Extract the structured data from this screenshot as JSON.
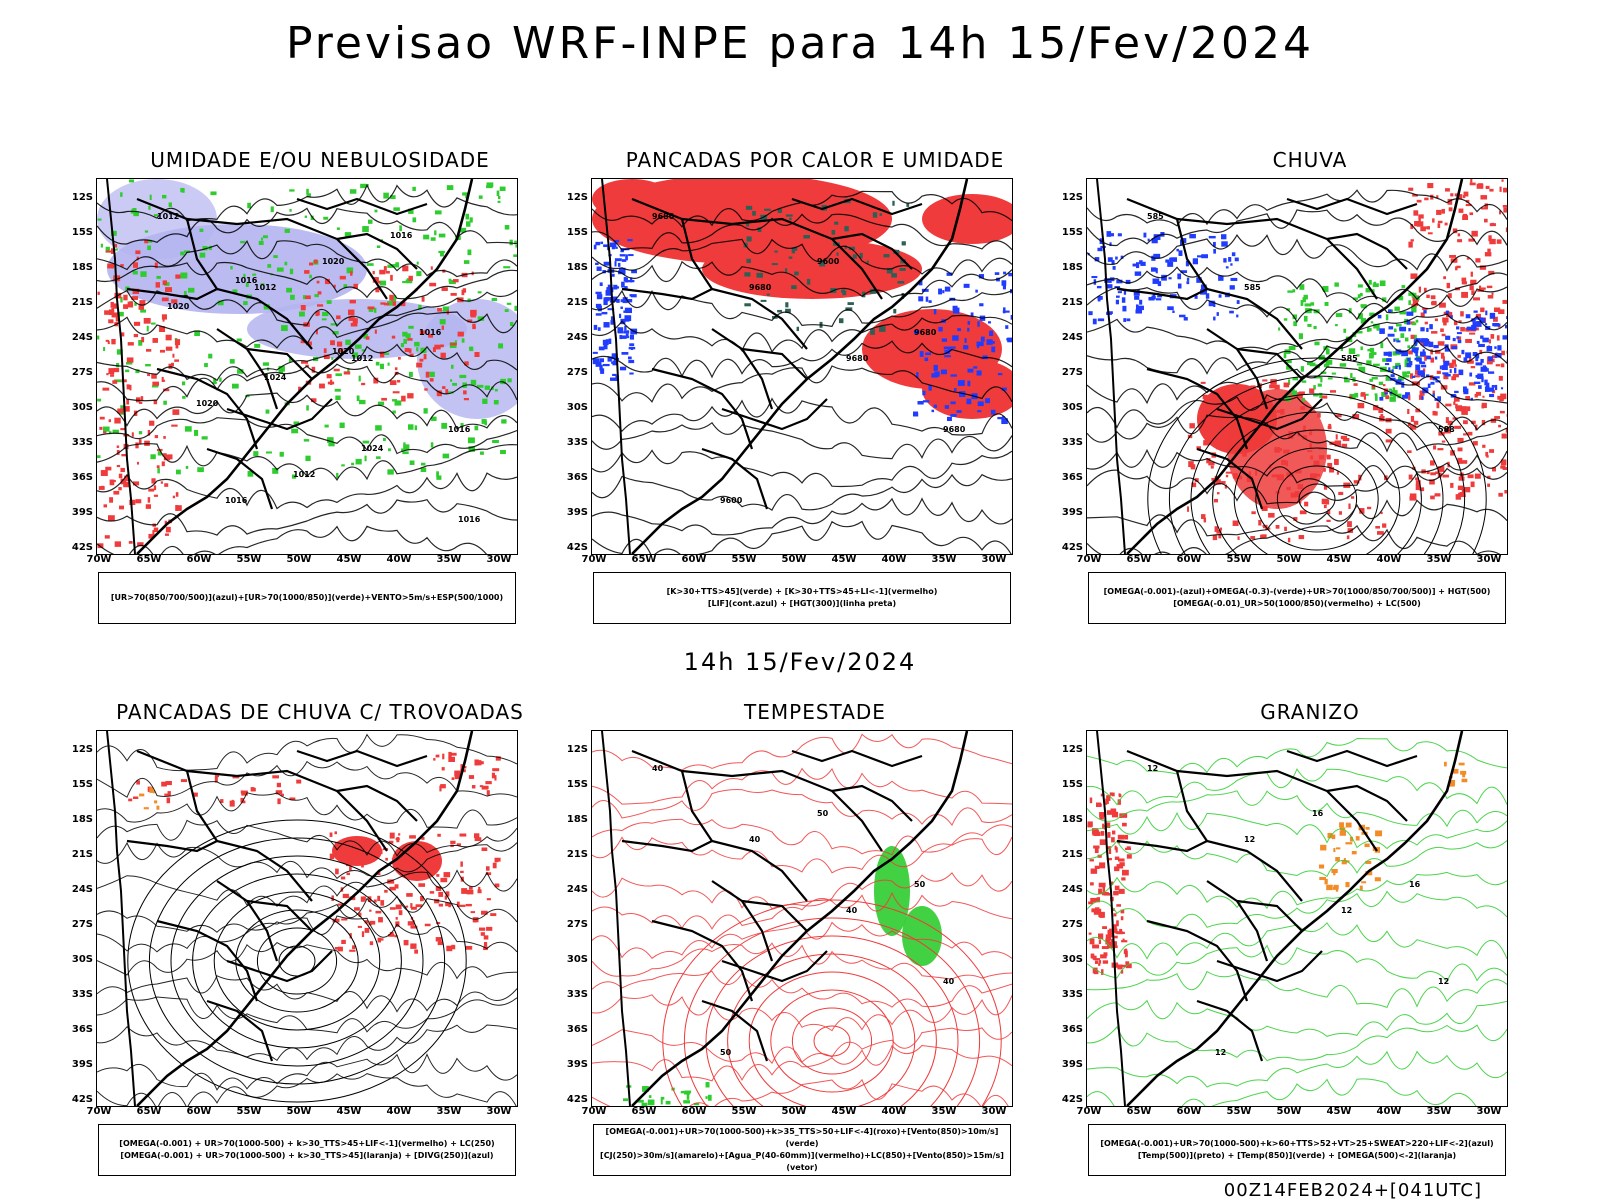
{
  "title": "Previsao WRF-INPE  para 14h 15/Fev/2024",
  "subtitle": "14h 15/Fev/2024",
  "footer": "00Z14FEB2024+[041UTC]",
  "lat_labels": [
    "12S",
    "15S",
    "18S",
    "21S",
    "24S",
    "27S",
    "30S",
    "33S",
    "36S",
    "39S",
    "42S"
  ],
  "lon_labels": [
    "70W",
    "65W",
    "60W",
    "55W",
    "50W",
    "45W",
    "40W",
    "35W",
    "30W"
  ],
  "colors": {
    "red": "#ef3b3b",
    "green": "#2ecc2e",
    "blue": "#1f3cff",
    "lavender": "#b4b4f0",
    "orange": "#f28c28",
    "dark": "#2d5f55"
  },
  "panels": [
    {
      "title": "UMIDADE E/OU NEBULOSIDADE",
      "legend": [
        "[UR>70(850/700/500)](azul)+[UR>70(1000/850)](verde)+VENTO>5m/s+ESP(500/1000)"
      ],
      "isobars": [
        "1012",
        "1012",
        "1012",
        "1016",
        "1016",
        "1020",
        "1016",
        "1020",
        "1012",
        "1016",
        "1020",
        "1024",
        "1024",
        "1016",
        "1016",
        "1020"
      ]
    },
    {
      "title": "PANCADAS POR CALOR E UMIDADE",
      "legend": [
        "[K>30+TTS>45](verde) + [K>30+TTS>45+LI<-1](vermelho)",
        "[LIF](cont.azul) + [HGT(300)](linha preta)"
      ],
      "isobars": [
        "9680",
        "9680",
        "9680",
        "9680",
        "9600",
        "9600",
        "9680"
      ]
    },
    {
      "title": "CHUVA",
      "legend": [
        "[OMEGA(-0.001)-(azul)+OMEGA(-0.3)-(verde)+UR>70(1000/850/700/500)] + HGT(500)",
        "[OMEGA(-0.01)_UR>50(1000/850)(vermelho) + LC(500)"
      ],
      "isobars": [
        "585",
        "585",
        "585",
        "588"
      ]
    },
    {
      "title": "PANCADAS DE CHUVA C/ TROVOADAS",
      "legend": [
        "[OMEGA(-0.001) + UR>70(1000-500) + k>30_TTS>45+LIF<-1](vermelho) + LC(250)",
        "[OMEGA(-0.001) + UR>70(1000-500) + k>30_TTS>45](laranja) + [DIVG(250)](azul)"
      ],
      "isobars": []
    },
    {
      "title": "TEMPESTADE",
      "legend": [
        "[OMEGA(-0.001)+UR>70(1000-500)+k>35_TTS>50+LIF<-4](roxo)+[Vento(850)>10m/s](verde)",
        "[CJ(250)>30m/s](amarelo)+[Agua_P(40-60mm)](vermelho)+LC(850)+[Vento(850)>15m/s](vetor)"
      ],
      "isobars": [
        "40",
        "40",
        "40",
        "40",
        "50",
        "50",
        "50"
      ]
    },
    {
      "title": "GRANIZO",
      "legend": [
        "[OMEGA(-0.001)+UR>70(1000-500)+k>60+TTS>52+VT>25+SWEAT>220+LIF<-2](azul)",
        "[Temp(500)](preto) + [Temp(850)](verde) + [OMEGA(500)<-2](laranja)"
      ],
      "isobars": [
        "12",
        "12",
        "12",
        "12",
        "12",
        "16",
        "16"
      ]
    }
  ]
}
